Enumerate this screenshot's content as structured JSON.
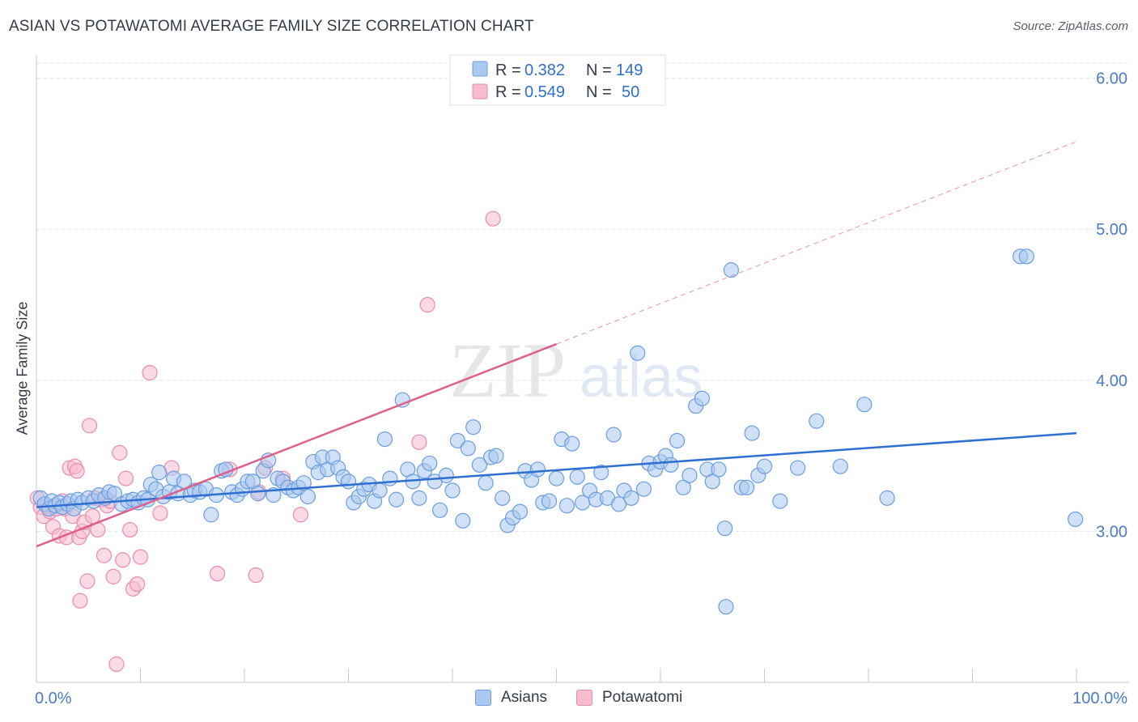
{
  "title": "ASIAN VS POTAWATOMI AVERAGE FAMILY SIZE CORRELATION CHART",
  "source": "Source: ZipAtlas.com",
  "watermark": {
    "part1": "ZIP",
    "part2": "atlas"
  },
  "colors": {
    "asian_fill": "#aac8f0",
    "asian_stroke": "#6a9ee0",
    "asian_line": "#2f6fd0",
    "pota_fill": "#f8bccf",
    "pota_stroke": "#ec8aaa",
    "pota_line": "#e0608a",
    "axis_text": "#4a7cc4",
    "grid": "#dde2ea"
  },
  "legend": {
    "rows": [
      {
        "r_label": "R =",
        "r_value": "0.382",
        "n_label": "N =",
        "n_value": "149"
      },
      {
        "r_label": "R =",
        "r_value": "0.549",
        "n_label": "N =",
        "n_value": "50"
      }
    ]
  },
  "bottom_legend": [
    {
      "label": "Asians"
    },
    {
      "label": "Potawatomi"
    }
  ],
  "chart_data": {
    "type": "scatter",
    "title": "ASIAN VS POTAWATOMI AVERAGE FAMILY SIZE CORRELATION CHART",
    "xlabel": "",
    "ylabel": "Average Family Size",
    "xlim": [
      0,
      100
    ],
    "ylim": [
      2.0,
      6.1
    ],
    "x_tick_labels": [
      "0.0%",
      "100.0%"
    ],
    "y_ticks": [
      3.0,
      4.0,
      5.0,
      6.0
    ],
    "y_tick_labels": [
      "3.00",
      "4.00",
      "5.00",
      "6.00"
    ],
    "grid": true,
    "legend_position": "top-center",
    "series": [
      {
        "name": "Asians",
        "r": 0.382,
        "n": 149,
        "trend": {
          "x": [
            0,
            100
          ],
          "y": [
            3.16,
            3.65
          ],
          "dashed_extension": false
        },
        "points": [
          [
            0.4,
            3.22
          ],
          [
            0.8,
            3.18
          ],
          [
            1.2,
            3.15
          ],
          [
            1.5,
            3.2
          ],
          [
            1.8,
            3.17
          ],
          [
            2.2,
            3.19
          ],
          [
            2.5,
            3.16
          ],
          [
            3.0,
            3.18
          ],
          [
            3.3,
            3.2
          ],
          [
            3.6,
            3.15
          ],
          [
            4.0,
            3.21
          ],
          [
            4.4,
            3.19
          ],
          [
            5.0,
            3.22
          ],
          [
            5.5,
            3.2
          ],
          [
            6.0,
            3.24
          ],
          [
            6.6,
            3.22
          ],
          [
            7.0,
            3.26
          ],
          [
            7.5,
            3.25
          ],
          [
            8.2,
            3.18
          ],
          [
            8.8,
            3.2
          ],
          [
            9.3,
            3.21
          ],
          [
            9.8,
            3.19
          ],
          [
            10.3,
            3.22
          ],
          [
            10.7,
            3.21
          ],
          [
            11.0,
            3.31
          ],
          [
            11.5,
            3.28
          ],
          [
            11.8,
            3.39
          ],
          [
            12.2,
            3.23
          ],
          [
            12.8,
            3.26
          ],
          [
            13.2,
            3.35
          ],
          [
            13.6,
            3.25
          ],
          [
            14.2,
            3.33
          ],
          [
            14.8,
            3.24
          ],
          [
            15.2,
            3.27
          ],
          [
            15.7,
            3.26
          ],
          [
            16.3,
            3.28
          ],
          [
            16.8,
            3.11
          ],
          [
            17.3,
            3.24
          ],
          [
            17.8,
            3.4
          ],
          [
            18.2,
            3.41
          ],
          [
            18.8,
            3.26
          ],
          [
            19.3,
            3.24
          ],
          [
            19.8,
            3.28
          ],
          [
            20.3,
            3.33
          ],
          [
            20.8,
            3.33
          ],
          [
            21.3,
            3.25
          ],
          [
            21.8,
            3.4
          ],
          [
            22.3,
            3.47
          ],
          [
            22.8,
            3.24
          ],
          [
            23.2,
            3.35
          ],
          [
            23.7,
            3.33
          ],
          [
            24.2,
            3.29
          ],
          [
            24.7,
            3.27
          ],
          [
            25.2,
            3.29
          ],
          [
            25.7,
            3.32
          ],
          [
            26.1,
            3.23
          ],
          [
            26.6,
            3.46
          ],
          [
            27.1,
            3.39
          ],
          [
            27.5,
            3.49
          ],
          [
            28.0,
            3.41
          ],
          [
            28.5,
            3.49
          ],
          [
            29.0,
            3.42
          ],
          [
            29.5,
            3.36
          ],
          [
            30.0,
            3.33
          ],
          [
            30.5,
            3.19
          ],
          [
            31.0,
            3.23
          ],
          [
            31.5,
            3.28
          ],
          [
            32.0,
            3.31
          ],
          [
            32.5,
            3.2
          ],
          [
            33.0,
            3.27
          ],
          [
            33.5,
            3.61
          ],
          [
            34.0,
            3.35
          ],
          [
            34.6,
            3.21
          ],
          [
            35.2,
            3.87
          ],
          [
            35.7,
            3.41
          ],
          [
            36.2,
            3.33
          ],
          [
            36.8,
            3.22
          ],
          [
            37.3,
            3.4
          ],
          [
            37.8,
            3.45
          ],
          [
            38.3,
            3.33
          ],
          [
            38.8,
            3.14
          ],
          [
            39.4,
            3.37
          ],
          [
            40.0,
            3.27
          ],
          [
            40.5,
            3.6
          ],
          [
            41.0,
            3.07
          ],
          [
            41.5,
            3.55
          ],
          [
            42.0,
            3.69
          ],
          [
            42.6,
            3.44
          ],
          [
            43.2,
            3.32
          ],
          [
            43.7,
            3.49
          ],
          [
            44.2,
            3.5
          ],
          [
            44.8,
            3.22
          ],
          [
            45.3,
            3.04
          ],
          [
            45.8,
            3.09
          ],
          [
            46.5,
            3.13
          ],
          [
            47.0,
            3.4
          ],
          [
            47.6,
            3.34
          ],
          [
            48.2,
            3.41
          ],
          [
            48.7,
            3.19
          ],
          [
            49.3,
            3.2
          ],
          [
            50.0,
            3.35
          ],
          [
            50.5,
            3.61
          ],
          [
            51.0,
            3.17
          ],
          [
            51.5,
            3.58
          ],
          [
            52.0,
            3.36
          ],
          [
            52.5,
            3.19
          ],
          [
            53.2,
            3.27
          ],
          [
            53.8,
            3.21
          ],
          [
            54.3,
            3.39
          ],
          [
            54.9,
            3.22
          ],
          [
            55.5,
            3.64
          ],
          [
            56.0,
            3.18
          ],
          [
            56.5,
            3.27
          ],
          [
            57.2,
            3.22
          ],
          [
            57.8,
            4.18
          ],
          [
            58.4,
            3.28
          ],
          [
            58.9,
            3.45
          ],
          [
            59.5,
            3.41
          ],
          [
            60.0,
            3.46
          ],
          [
            60.5,
            3.5
          ],
          [
            61.0,
            3.44
          ],
          [
            61.6,
            3.6
          ],
          [
            62.2,
            3.29
          ],
          [
            62.8,
            3.37
          ],
          [
            63.4,
            3.83
          ],
          [
            64.0,
            3.88
          ],
          [
            64.5,
            3.41
          ],
          [
            65.0,
            3.33
          ],
          [
            65.6,
            3.41
          ],
          [
            66.2,
            3.02
          ],
          [
            66.8,
            4.73
          ],
          [
            66.3,
            2.5
          ],
          [
            67.8,
            3.29
          ],
          [
            68.3,
            3.29
          ],
          [
            68.8,
            3.65
          ],
          [
            69.4,
            3.37
          ],
          [
            70.0,
            3.43
          ],
          [
            71.5,
            3.2
          ],
          [
            73.2,
            3.42
          ],
          [
            75.0,
            3.73
          ],
          [
            77.3,
            3.43
          ],
          [
            79.6,
            3.84
          ],
          [
            81.8,
            3.22
          ],
          [
            94.6,
            4.82
          ],
          [
            95.2,
            4.82
          ],
          [
            99.9,
            3.08
          ]
        ]
      },
      {
        "name": "Potawatomi",
        "r": 0.549,
        "n": 50,
        "trend": {
          "x": [
            0,
            50
          ],
          "y": [
            2.9,
            4.24
          ],
          "dashed_extension": {
            "x": [
              50,
              100
            ],
            "y": [
              4.24,
              5.58
            ]
          }
        },
        "points": [
          [
            0.1,
            3.22
          ],
          [
            0.4,
            3.16
          ],
          [
            0.7,
            3.1
          ],
          [
            1.0,
            3.17
          ],
          [
            1.3,
            3.13
          ],
          [
            1.6,
            3.03
          ],
          [
            1.9,
            3.15
          ],
          [
            2.2,
            2.97
          ],
          [
            2.5,
            3.2
          ],
          [
            2.7,
            3.15
          ],
          [
            2.9,
            2.96
          ],
          [
            3.2,
            3.42
          ],
          [
            3.5,
            3.1
          ],
          [
            3.7,
            3.43
          ],
          [
            3.9,
            3.4
          ],
          [
            4.1,
            2.96
          ],
          [
            4.2,
            2.54
          ],
          [
            4.4,
            3.0
          ],
          [
            4.6,
            3.06
          ],
          [
            4.9,
            2.67
          ],
          [
            5.1,
            3.7
          ],
          [
            5.4,
            3.1
          ],
          [
            5.6,
            3.22
          ],
          [
            5.9,
            3.01
          ],
          [
            6.2,
            3.21
          ],
          [
            6.5,
            2.84
          ],
          [
            6.8,
            3.17
          ],
          [
            7.1,
            3.2
          ],
          [
            7.4,
            2.7
          ],
          [
            7.7,
            2.12
          ],
          [
            8.0,
            3.52
          ],
          [
            8.3,
            2.81
          ],
          [
            8.6,
            3.35
          ],
          [
            9.0,
            3.01
          ],
          [
            9.3,
            2.62
          ],
          [
            9.7,
            2.65
          ],
          [
            10.0,
            2.83
          ],
          [
            10.9,
            4.05
          ],
          [
            11.9,
            3.12
          ],
          [
            13.0,
            3.42
          ],
          [
            17.4,
            2.72
          ],
          [
            18.6,
            3.41
          ],
          [
            21.1,
            2.71
          ],
          [
            21.4,
            3.26
          ],
          [
            22.0,
            3.42
          ],
          [
            23.7,
            3.35
          ],
          [
            25.4,
            3.11
          ],
          [
            36.8,
            3.59
          ],
          [
            37.6,
            4.5
          ],
          [
            43.9,
            5.07
          ]
        ]
      }
    ]
  }
}
